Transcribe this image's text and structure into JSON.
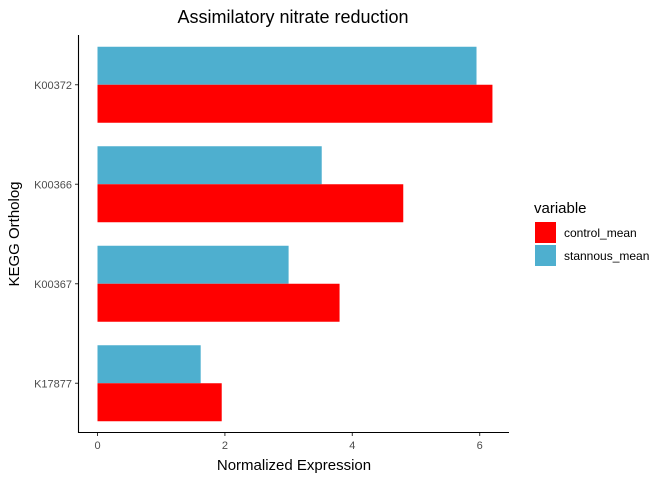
{
  "chart_data": {
    "type": "bar",
    "orientation": "horizontal",
    "title": "Assimilatory nitrate reduction",
    "xlabel": "Normalized Expression",
    "ylabel": "KEGG Ortholog",
    "xlim": [
      0,
      6.5
    ],
    "x_ticks": [
      0,
      2,
      4,
      6
    ],
    "categories": [
      "K00372",
      "K00366",
      "K00367",
      "K17877"
    ],
    "series": [
      {
        "name": "control_mean",
        "color": "#ff0000",
        "values": [
          6.2,
          4.8,
          3.8,
          1.95
        ]
      },
      {
        "name": "stannous_mean",
        "color": "#4eafcf",
        "values": [
          5.95,
          3.52,
          3.0,
          1.62
        ]
      }
    ],
    "legend": {
      "title": "variable",
      "position": "right"
    },
    "grid": false
  }
}
